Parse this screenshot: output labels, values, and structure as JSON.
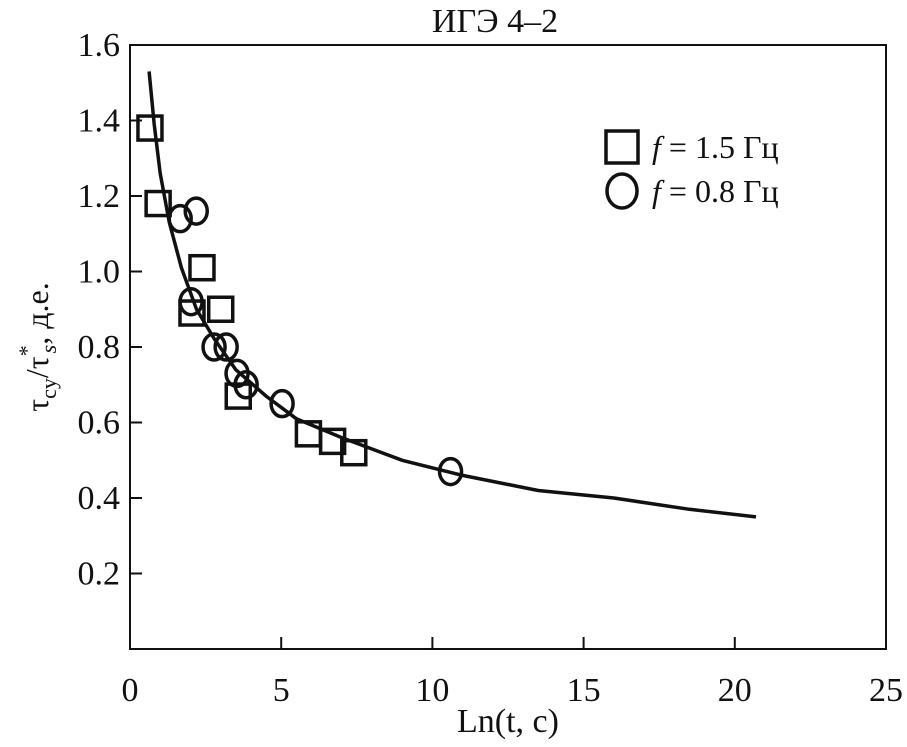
{
  "chart_data": {
    "type": "scatter",
    "title": "ИГЭ 4–2",
    "xlabel": "Ln(t, c)",
    "ylabel": {
      "main": "τ",
      "sub1": "cy",
      "slash": "/τ",
      "sup": "*",
      "sub2": "s",
      "tail": ", д.е."
    },
    "xlim": [
      0,
      25
    ],
    "ylim": [
      0,
      1.6
    ],
    "xticks": [
      0,
      5,
      10,
      15,
      20,
      25
    ],
    "yticks": [
      0.2,
      0.4,
      0.6,
      0.8,
      1.0,
      1.2,
      1.4,
      1.6
    ],
    "ytick_labels": [
      "0.2",
      "0.4",
      "0.6",
      "0.8",
      "1.0",
      "1.2",
      "1.4",
      "1.6"
    ],
    "grid": false,
    "legend_position": "top-right",
    "series": [
      {
        "name": "f = 1.5 Гц",
        "name_var": "f",
        "name_rest": " = 1.5 Гц",
        "marker": "square",
        "x": [
          0.66,
          0.93,
          2.38,
          2.05,
          3.0,
          3.58,
          5.9,
          6.7,
          7.4
        ],
        "y": [
          1.38,
          1.18,
          1.01,
          0.89,
          0.9,
          0.67,
          0.57,
          0.55,
          0.52
        ]
      },
      {
        "name": "f = 0.8 Гц",
        "name_var": "f",
        "name_rest": " = 0.8 Гц",
        "marker": "circle",
        "x": [
          1.66,
          2.19,
          2.02,
          2.78,
          3.18,
          3.54,
          3.84,
          5.03,
          10.6
        ],
        "y": [
          1.14,
          1.16,
          0.92,
          0.8,
          0.8,
          0.73,
          0.7,
          0.65,
          0.47
        ]
      }
    ],
    "fit_curve": {
      "x": [
        0.63,
        0.8,
        1.0,
        1.3,
        1.7,
        2.2,
        2.8,
        3.5,
        4.5,
        5.5,
        7,
        9,
        11,
        13.5,
        16,
        18.5,
        20.7
      ],
      "y": [
        1.53,
        1.39,
        1.26,
        1.13,
        1.01,
        0.9,
        0.82,
        0.74,
        0.67,
        0.61,
        0.56,
        0.5,
        0.46,
        0.42,
        0.4,
        0.37,
        0.35
      ]
    }
  }
}
